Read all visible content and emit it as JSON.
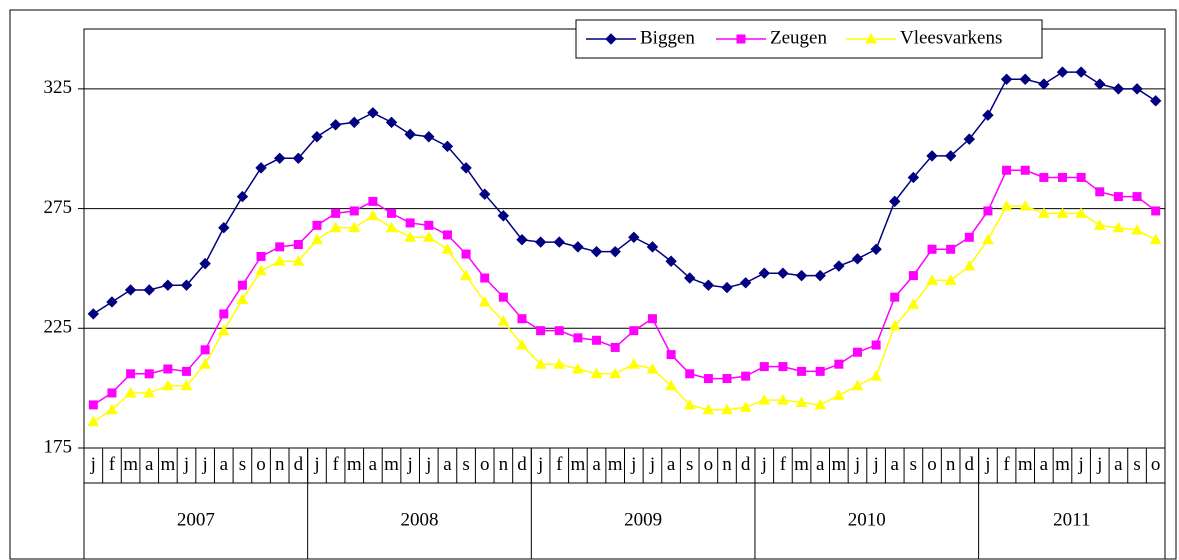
{
  "chart_data": {
    "type": "line",
    "categories": [
      "j",
      "f",
      "m",
      "a",
      "m",
      "j",
      "j",
      "a",
      "s",
      "o",
      "n",
      "d",
      "j",
      "f",
      "m",
      "a",
      "m",
      "j",
      "j",
      "a",
      "s",
      "o",
      "n",
      "d",
      "j",
      "f",
      "m",
      "a",
      "m",
      "j",
      "j",
      "a",
      "s",
      "o",
      "n",
      "d",
      "j",
      "f",
      "m",
      "a",
      "m",
      "j",
      "j",
      "a",
      "s",
      "o",
      "n",
      "d",
      "j",
      "f",
      "m",
      "a",
      "m",
      "j",
      "j",
      "a",
      "s",
      "o"
    ],
    "category_groups": [
      "2007",
      "2008",
      "2009",
      "2010",
      "2011"
    ],
    "series": [
      {
        "name": "Biggen",
        "color": "#000080",
        "marker": "diamond",
        "values": [
          231,
          236,
          241,
          241,
          243,
          243,
          252,
          267,
          280,
          292,
          296,
          296,
          305,
          310,
          311,
          315,
          311,
          306,
          305,
          301,
          292,
          281,
          272,
          262,
          261,
          261,
          259,
          257,
          257,
          263,
          259,
          253,
          246,
          243,
          242,
          244,
          248,
          248,
          247,
          247,
          251,
          254,
          258,
          278,
          288,
          297,
          297,
          304,
          314,
          329,
          329,
          327,
          332,
          332,
          327,
          325,
          325,
          320
        ]
      },
      {
        "name": "Zeugen",
        "color": "#ff00ff",
        "marker": "square",
        "values": [
          193,
          198,
          206,
          206,
          208,
          207,
          216,
          231,
          243,
          255,
          259,
          260,
          268,
          273,
          274,
          278,
          273,
          269,
          268,
          264,
          256,
          246,
          238,
          229,
          224,
          224,
          221,
          220,
          217,
          224,
          229,
          214,
          206,
          204,
          204,
          205,
          209,
          209,
          207,
          207,
          210,
          215,
          218,
          238,
          247,
          258,
          258,
          263,
          274,
          291,
          291,
          288,
          288,
          288,
          282,
          280,
          280,
          274
        ]
      },
      {
        "name": "Vleesvarkens",
        "color": "#ffff00",
        "marker": "triangle",
        "values": [
          186,
          191,
          198,
          198,
          201,
          201,
          210,
          224,
          237,
          249,
          253,
          253,
          262,
          267,
          267,
          272,
          267,
          263,
          263,
          258,
          247,
          236,
          228,
          218,
          210,
          210,
          208,
          206,
          206,
          210,
          208,
          201,
          193,
          191,
          191,
          192,
          195,
          195,
          194,
          193,
          197,
          201,
          205,
          226,
          235,
          245,
          245,
          251,
          262,
          276,
          276,
          273,
          273,
          273,
          268,
          267,
          266,
          262
        ]
      }
    ],
    "ylim": [
      175,
      350
    ],
    "yticks": [
      175,
      225,
      275,
      325
    ],
    "grid": true,
    "legend": "top"
  }
}
